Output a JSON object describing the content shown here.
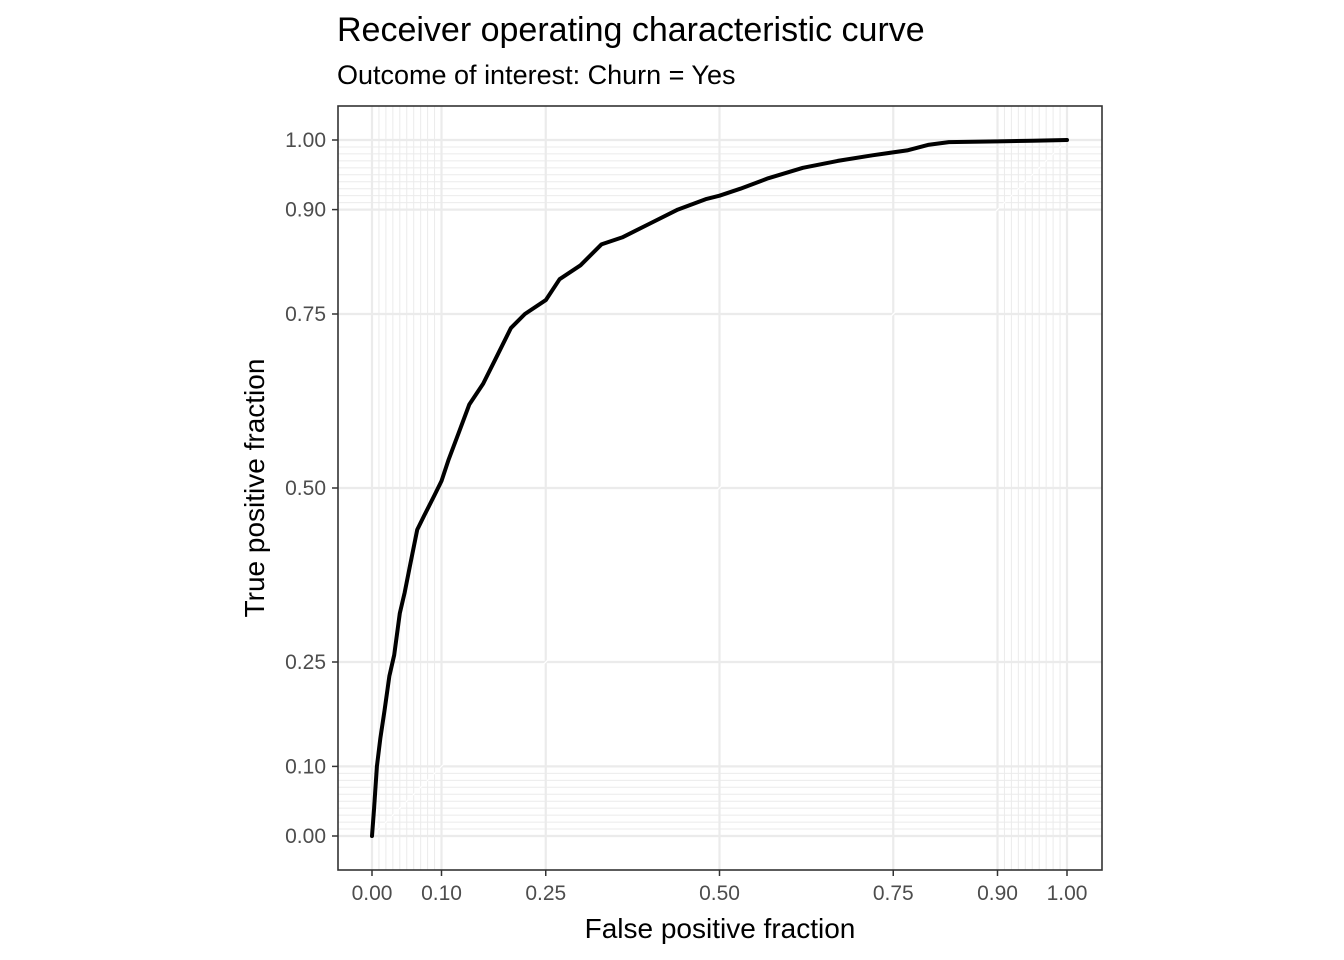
{
  "chart_data": {
    "type": "line",
    "title": "Receiver operating characteristic curve",
    "subtitle": "Outcome of interest: Churn = Yes",
    "xlabel": "False positive fraction",
    "ylabel": "True positive fraction",
    "xlim": [
      0,
      1
    ],
    "ylim": [
      0,
      1
    ],
    "x_ticks": [
      0.0,
      0.1,
      0.25,
      0.5,
      0.75,
      0.9,
      1.0
    ],
    "x_tick_labels": [
      "0.00",
      "0.10",
      "0.25",
      "0.50",
      "0.75",
      "0.90",
      "1.00"
    ],
    "y_ticks": [
      0.0,
      0.1,
      0.25,
      0.5,
      0.75,
      0.9,
      1.0
    ],
    "y_tick_labels": [
      "0.00",
      "0.10",
      "0.25",
      "0.50",
      "0.75",
      "0.90",
      "1.00"
    ],
    "grid": true,
    "minor_grid_x": [
      0.01,
      0.02,
      0.03,
      0.04,
      0.05,
      0.06,
      0.07,
      0.08,
      0.09,
      0.91,
      0.92,
      0.93,
      0.94,
      0.95,
      0.96,
      0.97,
      0.98,
      0.99
    ],
    "minor_grid_y": [
      0.01,
      0.02,
      0.03,
      0.04,
      0.05,
      0.06,
      0.07,
      0.08,
      0.09,
      0.91,
      0.92,
      0.93,
      0.94,
      0.95,
      0.96,
      0.97,
      0.98,
      0.99
    ],
    "series": [
      {
        "color": "#000000",
        "x": [
          0.0,
          0.003,
          0.007,
          0.012,
          0.018,
          0.025,
          0.032,
          0.04,
          0.047,
          0.055,
          0.065,
          0.075,
          0.09,
          0.1,
          0.11,
          0.125,
          0.14,
          0.16,
          0.18,
          0.2,
          0.22,
          0.25,
          0.27,
          0.3,
          0.33,
          0.36,
          0.4,
          0.44,
          0.48,
          0.5,
          0.53,
          0.57,
          0.62,
          0.67,
          0.72,
          0.77,
          0.8,
          0.83,
          0.9,
          0.95,
          1.0
        ],
        "y": [
          0.0,
          0.04,
          0.1,
          0.14,
          0.18,
          0.23,
          0.26,
          0.32,
          0.35,
          0.39,
          0.44,
          0.46,
          0.49,
          0.51,
          0.54,
          0.58,
          0.62,
          0.65,
          0.69,
          0.73,
          0.75,
          0.77,
          0.8,
          0.82,
          0.85,
          0.86,
          0.88,
          0.9,
          0.915,
          0.92,
          0.93,
          0.945,
          0.96,
          0.97,
          0.978,
          0.985,
          0.993,
          0.997,
          0.998,
          0.999,
          1.0
        ]
      }
    ]
  }
}
